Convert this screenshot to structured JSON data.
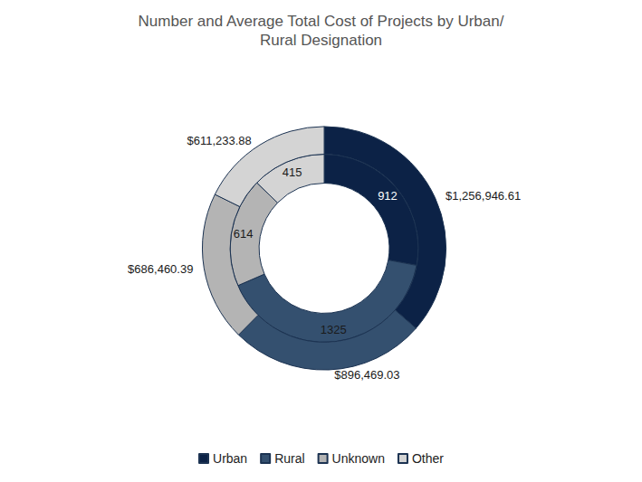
{
  "chart_data": {
    "type": "pie",
    "title": "Number and Average Total Cost of Projects by Urban/Rural Designation",
    "categories": [
      "Urban",
      "Rural",
      "Unknown",
      "Other"
    ],
    "colors": [
      "#0c2246",
      "#34506f",
      "#b4b4b4",
      "#d4d4d4"
    ],
    "legend": "bottom",
    "series": [
      {
        "values": [
          912,
          1325,
          614,
          415
        ],
        "data_labels": true
      },
      {
        "values": [
          1256946.61,
          896469.03,
          686460.39,
          611233.88
        ],
        "value_labels": [
          "$1,256,946.61",
          "$896,469.03",
          "$686,460.39",
          "$611,233.88"
        ],
        "data_labels": true
      }
    ]
  }
}
